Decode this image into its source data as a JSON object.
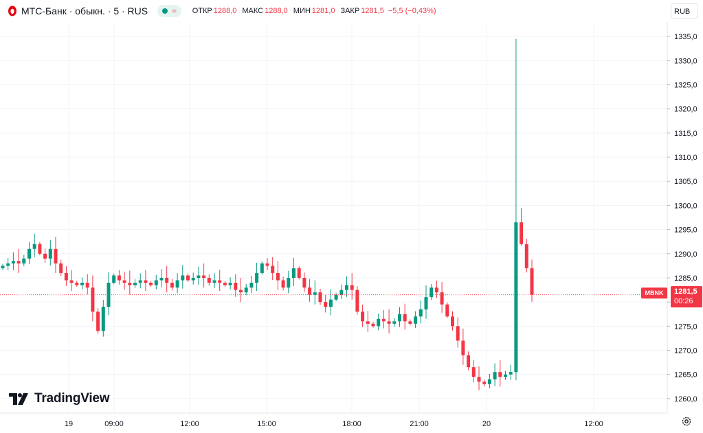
{
  "header": {
    "symbol": "МТС-Банк · обыкн. · 5 · RUS",
    "delay_icon": "≈",
    "ohlc": [
      {
        "label": "ОТКР",
        "value": "1288,0"
      },
      {
        "label": "МАКС",
        "value": "1288,0"
      },
      {
        "label": "МИН",
        "value": "1281,0"
      },
      {
        "label": "ЗАКР",
        "value": "1281,5"
      }
    ],
    "change": "−5,5 (−0,43%)",
    "currency": "RUB"
  },
  "price_tag": {
    "symbol": "MBNK",
    "price": "1281,5",
    "timer": "00:26"
  },
  "brand": "TradingView",
  "colors": {
    "up": "#089981",
    "down": "#f23645",
    "grid": "#f0f3fa",
    "axis_text": "#131722"
  },
  "icons": {
    "settings": "gear-icon",
    "logo": "mts-egg-icon"
  },
  "chart_data": {
    "type": "candlestick",
    "interval": "5",
    "y_ticks": [
      "1260,0",
      "1265,0",
      "1270,0",
      "1275,0",
      "1280,0",
      "1285,0",
      "1290,0",
      "1295,0",
      "1300,0",
      "1305,0",
      "1310,0",
      "1315,0",
      "1320,0",
      "1325,0",
      "1330,0",
      "1335,0"
    ],
    "y_range": [
      1257.0,
      1338.0
    ],
    "x_ticks": [
      "19",
      "09:00",
      "12:00",
      "15:00",
      "18:00",
      "21:00",
      "20",
      "12:00"
    ],
    "last_price": 1281.5,
    "close_path": [
      1287.5,
      1288.0,
      1288.5,
      1288.0,
      1289.0,
      1291.0,
      1292.0,
      1290.0,
      1289.0,
      1291.0,
      1288.0,
      1286.0,
      1284.5,
      1284.0,
      1283.5,
      1284.0,
      1283.0,
      1278.0,
      1274.0,
      1279.0,
      1284.0,
      1285.5,
      1284.5,
      1284.0,
      1283.5,
      1284.0,
      1284.5,
      1284.0,
      1283.5,
      1284.5,
      1285.0,
      1284.0,
      1283.0,
      1284.5,
      1285.5,
      1284.5,
      1285.0,
      1285.5,
      1285.0,
      1284.0,
      1284.5,
      1284.0,
      1283.5,
      1284.0,
      1282.5,
      1282.0,
      1283.0,
      1284.0,
      1286.0,
      1288.0,
      1287.5,
      1286.0,
      1284.5,
      1283.0,
      1285.0,
      1287.0,
      1285.0,
      1283.0,
      1281.5,
      1282.0,
      1280.0,
      1279.0,
      1280.5,
      1281.5,
      1282.5,
      1283.5,
      1282.5,
      1278.0,
      1276.0,
      1275.5,
      1275.0,
      1276.5,
      1276.0,
      1275.5,
      1276.0,
      1277.5,
      1276.0,
      1275.5,
      1277.0,
      1278.5,
      1281.0,
      1283.0,
      1282.0,
      1279.5,
      1277.0,
      1275.0,
      1272.0,
      1269.0,
      1266.5,
      1264.5,
      1263.5,
      1263.0,
      1264.0,
      1265.5,
      1264.5,
      1265.0,
      1265.5,
      1296.5,
      1292.0,
      1287.0,
      1281.5
    ],
    "spike_high": 1334.5,
    "session_low": 1262.5
  }
}
